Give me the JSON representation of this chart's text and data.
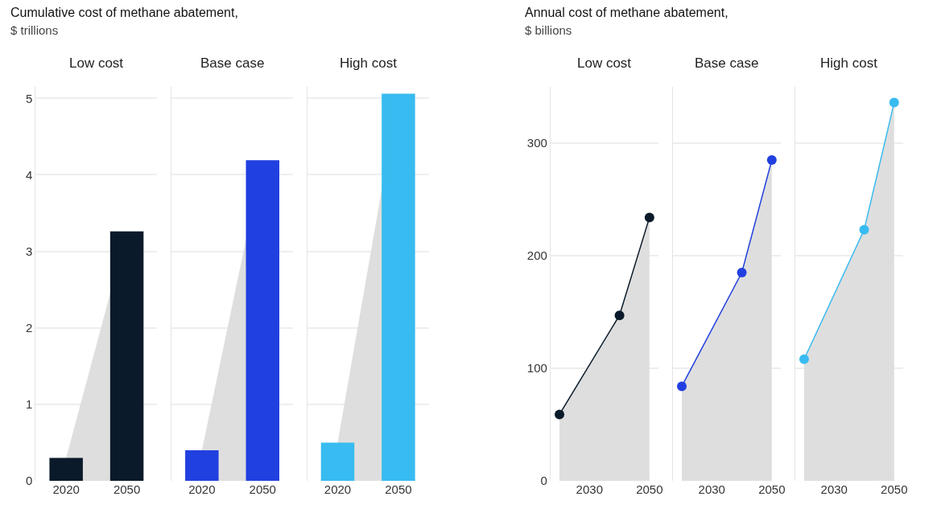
{
  "chart_data": [
    {
      "type": "bar",
      "title": "Cumulative cost of methane abatement,",
      "subtitle": "$ trillions",
      "annotations": [
        "Low cost"
      ],
      "categories": [
        "2020",
        "2050"
      ],
      "series": [
        {
          "type": "area",
          "color": "#dedede",
          "values": [
            0.3,
            3.26
          ]
        },
        {
          "colors": [
            "#0a1a2a",
            "#0a1a2a"
          ],
          "values": [
            0.3,
            3.26
          ]
        }
      ],
      "ylim": [
        0,
        5.15
      ],
      "yticks": [
        0,
        1,
        2,
        3,
        4,
        5
      ],
      "grid": "y"
    },
    {
      "type": "bar",
      "annotations": [
        "Base case"
      ],
      "categories": [
        "2020",
        "2050"
      ],
      "series": [
        {
          "type": "area",
          "color": "#dedede",
          "values": [
            0.4,
            4.19
          ]
        },
        {
          "colors": [
            "#2140e0",
            "#2140e0"
          ],
          "values": [
            0.4,
            4.19
          ]
        }
      ],
      "ylim": [
        0,
        5.15
      ],
      "yticks": [
        0,
        1,
        2,
        3,
        4,
        5
      ],
      "grid": "y",
      "tick_labels": "x"
    },
    {
      "type": "bar",
      "annotations": [
        "High cost"
      ],
      "categories": [
        "2020",
        "2050"
      ],
      "series": [
        {
          "type": "area",
          "color": "#dedede",
          "values": [
            0.5,
            5.06
          ]
        },
        {
          "colors": [
            "#38bbf0",
            "#38bbf0"
          ],
          "values": [
            0.5,
            5.06
          ]
        }
      ],
      "ylim": [
        0,
        5.15
      ],
      "yticks": [
        0,
        1,
        2,
        3,
        4,
        5
      ],
      "grid": "y",
      "tick_labels": "x"
    },
    {
      "type": "line",
      "title": "Annual cost of methane abatement,",
      "subtitle": "$ billions",
      "annotations": [
        "Low cost"
      ],
      "x": [
        2020,
        2040,
        2050
      ],
      "series": [
        {
          "type": "area",
          "color": "#0a1a2a",
          "values": [
            59,
            147,
            234
          ]
        }
      ],
      "marker": "circle",
      "xlim": [
        2017,
        2053
      ],
      "xticks": [
        2030,
        2050
      ],
      "ylim": [
        0,
        350
      ],
      "yticks": [
        0,
        100,
        200,
        300
      ],
      "grid": "y"
    },
    {
      "type": "line",
      "annotations": [
        "Base case"
      ],
      "x": [
        2020,
        2040,
        2050
      ],
      "series": [
        {
          "type": "area",
          "color": "#2140e0",
          "values": [
            84,
            185,
            285
          ]
        }
      ],
      "marker": "circle",
      "xlim": [
        2017,
        2053
      ],
      "xticks": [
        2030,
        2050
      ],
      "ylim": [
        0,
        350
      ],
      "yticks": [
        0,
        100,
        200,
        300
      ],
      "grid": "y",
      "tick_labels": "x"
    },
    {
      "type": "line",
      "annotations": [
        "High cost"
      ],
      "x": [
        2020,
        2040,
        2050
      ],
      "series": [
        {
          "type": "area",
          "color": "#38bbf0",
          "values": [
            108,
            223,
            336
          ]
        }
      ],
      "marker": "circle",
      "xlim": [
        2017,
        2053
      ],
      "xticks": [
        2030,
        2050
      ],
      "ylim": [
        0,
        350
      ],
      "yticks": [
        0,
        100,
        200,
        300
      ],
      "grid": "y",
      "tick_labels": "x"
    }
  ]
}
